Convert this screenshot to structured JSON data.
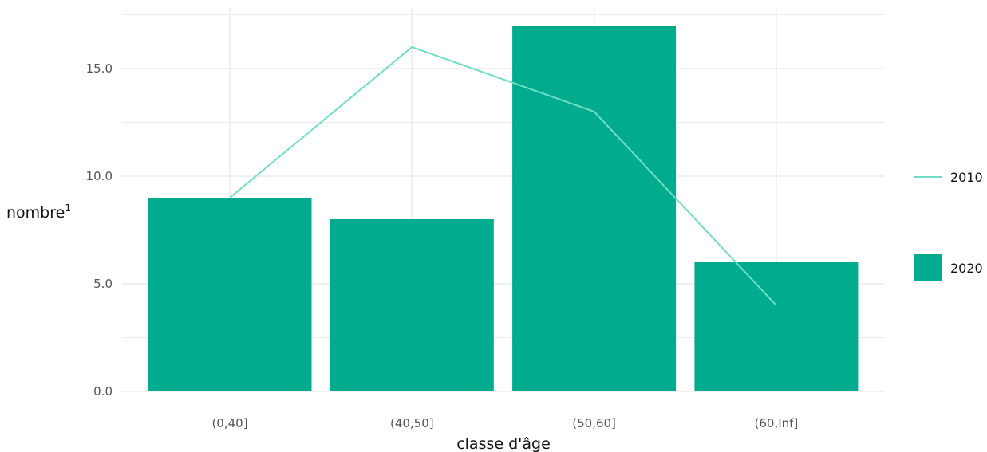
{
  "chart_data": {
    "type": "bar",
    "categories": [
      "(0,40]",
      "(40,50]",
      "(50,60]",
      "(60,Inf]"
    ],
    "series": [
      {
        "name": "2020",
        "kind": "bar",
        "values": [
          9,
          8,
          17,
          6
        ]
      },
      {
        "name": "2010",
        "kind": "line",
        "values": [
          9,
          16,
          13,
          4
        ]
      }
    ],
    "title": "",
    "xlabel": "classe d'âge",
    "ylabel": "nombre",
    "ylabel_superscript": "1",
    "ylim": [
      0,
      18
    ],
    "yticks": [
      0,
      5,
      10,
      15
    ],
    "ytick_labels": [
      "0.0",
      "5.0",
      "10.0",
      "15.0"
    ],
    "grid": true,
    "legend_position": "right",
    "legend": [
      {
        "label": "2010",
        "kind": "line"
      },
      {
        "label": "2020",
        "kind": "bar"
      }
    ],
    "colors": {
      "bar": "#00ab8e",
      "line": "#6fdfc4",
      "grid": "#ebebeb"
    }
  }
}
